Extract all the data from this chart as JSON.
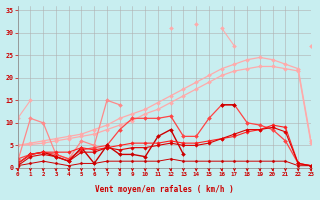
{
  "bg_color": "#c8eef0",
  "grid_color": "#b0b0b0",
  "xlabel": "Vent moyen/en rafales ( km/h )",
  "xlabel_color": "#cc0000",
  "tick_color": "#cc0000",
  "axis_label_color": "#cc0000",
  "x": [
    0,
    1,
    2,
    3,
    4,
    5,
    6,
    7,
    8,
    9,
    10,
    11,
    12,
    13,
    14,
    15,
    16,
    17,
    18,
    19,
    20,
    21,
    22,
    23
  ],
  "ylim": [
    0,
    36
  ],
  "xlim": [
    0,
    23
  ],
  "series": [
    {
      "name": "spiky_top",
      "color": "#ffaaaa",
      "lw": 0.8,
      "marker": "D",
      "ms": 2.0,
      "y": [
        null,
        null,
        null,
        null,
        null,
        null,
        null,
        null,
        null,
        null,
        null,
        null,
        31,
        null,
        32,
        null,
        31,
        27,
        null,
        null,
        null,
        null,
        null,
        27
      ]
    },
    {
      "name": "smooth_upper1",
      "color": "#ffaaaa",
      "lw": 0.9,
      "marker": "D",
      "ms": 2.0,
      "y": [
        5,
        5.5,
        6,
        6.5,
        7,
        7.5,
        8.5,
        9.5,
        11,
        12,
        13,
        14.5,
        16,
        17.5,
        19,
        20.5,
        22,
        23,
        24,
        24.5,
        24,
        23,
        22,
        6
      ]
    },
    {
      "name": "smooth_upper2",
      "color": "#ffaaaa",
      "lw": 0.9,
      "marker": "D",
      "ms": 2.0,
      "y": [
        5,
        5.2,
        5.5,
        6,
        6.5,
        7,
        7.5,
        8.5,
        9.5,
        10.5,
        12,
        13,
        14.5,
        16,
        17.5,
        19,
        20.5,
        21.5,
        22,
        22.5,
        22.5,
        22,
        21.5,
        5.5
      ]
    },
    {
      "name": "mid_light_spiky",
      "color": "#ffaaaa",
      "lw": 0.8,
      "marker": "D",
      "ms": 2.0,
      "y": [
        11,
        15,
        null,
        null,
        null,
        null,
        null,
        null,
        null,
        null,
        null,
        null,
        null,
        null,
        null,
        null,
        null,
        null,
        null,
        null,
        null,
        null,
        null,
        null
      ]
    },
    {
      "name": "mid_spiky_line",
      "color": "#ff8888",
      "lw": 0.9,
      "marker": "D",
      "ms": 2.0,
      "y": [
        1.5,
        11,
        10,
        3,
        2,
        6,
        5,
        15,
        14,
        null,
        null,
        null,
        null,
        null,
        null,
        null,
        null,
        null,
        null,
        null,
        null,
        null,
        null,
        null
      ]
    },
    {
      "name": "mid_red_line1",
      "color": "#ff4444",
      "lw": 0.9,
      "marker": "D",
      "ms": 2.0,
      "y": [
        2,
        3,
        3.5,
        3,
        2,
        4,
        4.5,
        5,
        8.5,
        11,
        11,
        11,
        11.5,
        7,
        7,
        11,
        14,
        14,
        10,
        9.5,
        8.5,
        6,
        1,
        0.5
      ]
    },
    {
      "name": "dark_red_spiky",
      "color": "#cc0000",
      "lw": 1.0,
      "marker": "D",
      "ms": 2.0,
      "y": [
        1,
        3,
        3.5,
        2.5,
        1.5,
        4.5,
        1,
        5,
        3,
        3,
        2.5,
        7,
        8.5,
        3,
        null,
        null,
        14,
        14,
        null,
        null,
        null,
        null,
        null,
        null
      ]
    },
    {
      "name": "flat_red1",
      "color": "#ff2222",
      "lw": 0.8,
      "marker": "D",
      "ms": 1.8,
      "y": [
        1,
        3,
        3.5,
        3.5,
        3.5,
        4.5,
        4,
        4.5,
        5,
        5.5,
        5.5,
        5.5,
        6,
        5.5,
        5.5,
        6,
        6.5,
        7,
        8,
        8.5,
        9.5,
        9,
        1,
        0.5
      ]
    },
    {
      "name": "flat_red2",
      "color": "#dd0000",
      "lw": 0.8,
      "marker": "D",
      "ms": 1.8,
      "y": [
        0.5,
        2.5,
        3,
        2.5,
        1.5,
        3.5,
        3.5,
        4.5,
        4,
        4.5,
        4.5,
        5,
        5.5,
        5,
        5,
        5.5,
        6.5,
        7.5,
        8.5,
        8.5,
        9,
        8,
        1,
        0.5
      ]
    },
    {
      "name": "bottom_flat",
      "color": "#cc0000",
      "lw": 0.7,
      "marker": "D",
      "ms": 1.5,
      "y": [
        0.5,
        1,
        1.5,
        1,
        0.5,
        1,
        1,
        1.5,
        1.5,
        1.5,
        1.5,
        1.5,
        2,
        1.5,
        1.5,
        1.5,
        1.5,
        1.5,
        1.5,
        1.5,
        1.5,
        1.5,
        0.5,
        0.5
      ]
    }
  ],
  "yticks": [
    0,
    5,
    10,
    15,
    20,
    25,
    30,
    35
  ],
  "tick_labels": [
    "0",
    "1",
    "2",
    "3",
    "4",
    "5",
    "6",
    "7",
    "8",
    "9",
    "10",
    "11",
    "12",
    "13",
    "14",
    "15",
    "16",
    "17",
    "18",
    "19",
    "20",
    "21",
    "22",
    "23"
  ]
}
